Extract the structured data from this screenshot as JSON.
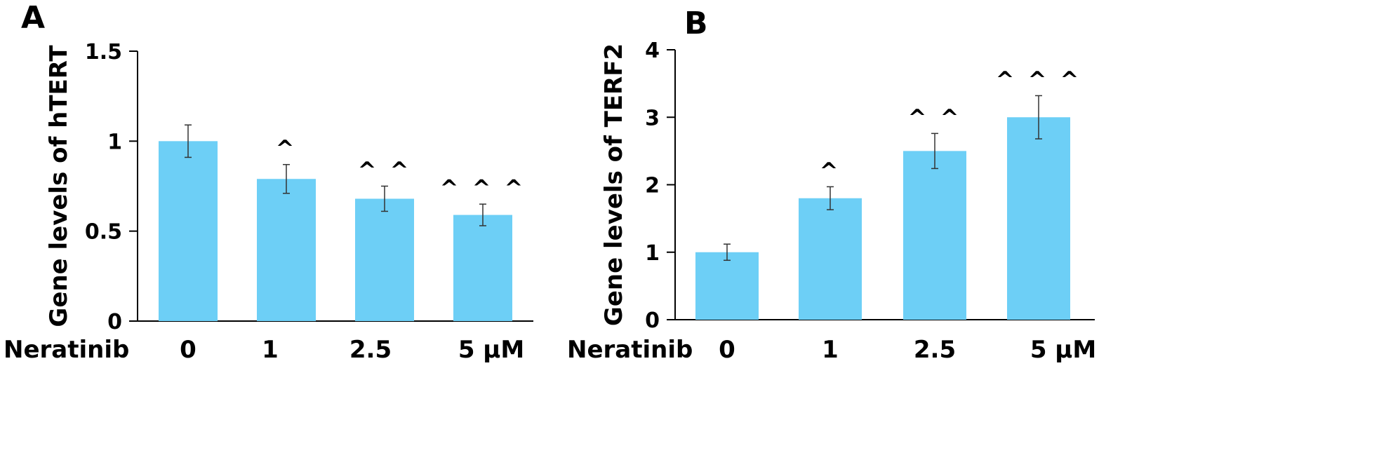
{
  "chart_data": [
    {
      "type": "bar",
      "panel": "A",
      "xlabel": "Neratinib",
      "ylabel": "Gene levels of hTERT",
      "categories": [
        "0",
        "1",
        "2.5",
        "5 μM"
      ],
      "values": [
        1.0,
        0.79,
        0.68,
        0.59
      ],
      "errors": [
        0.09,
        0.08,
        0.07,
        0.06
      ],
      "annotations": [
        "",
        "^",
        "^ ^",
        "^ ^ ^"
      ],
      "ylim": [
        0,
        1.5
      ],
      "yticks": [
        "0",
        "0.5",
        "1",
        "1.5"
      ],
      "ytick_values": [
        0,
        0.5,
        1,
        1.5
      ],
      "grid": false,
      "bar_color": "#6dcff6"
    },
    {
      "type": "bar",
      "panel": "B",
      "xlabel": "Neratinib",
      "ylabel": "Gene levels of TERF2",
      "categories": [
        "0",
        "1",
        "2.5",
        "5 μM"
      ],
      "values": [
        1.0,
        1.8,
        2.5,
        3.0
      ],
      "errors": [
        0.12,
        0.17,
        0.26,
        0.32
      ],
      "annotations": [
        "",
        "^",
        "^ ^",
        "^ ^ ^"
      ],
      "ylim": [
        0,
        4
      ],
      "yticks": [
        "0",
        "1",
        "2",
        "3",
        "4"
      ],
      "ytick_values": [
        0,
        1,
        2,
        3,
        4
      ],
      "grid": false,
      "bar_color": "#6dcff6"
    }
  ]
}
